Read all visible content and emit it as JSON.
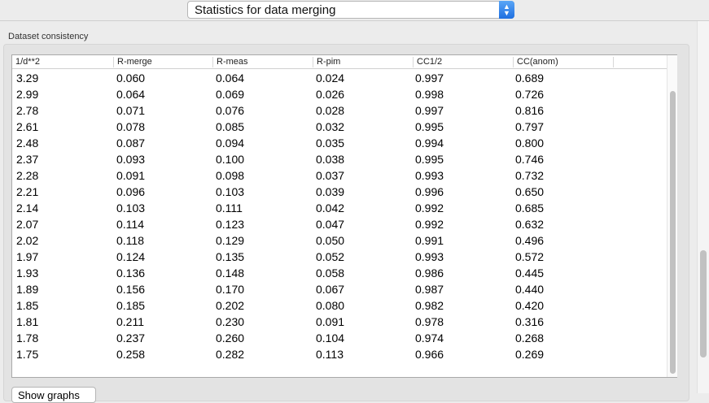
{
  "selector": {
    "value": "Statistics for data merging"
  },
  "group": {
    "label": "Dataset consistency"
  },
  "table": {
    "columns": [
      "1/d**2",
      "R-merge",
      "R-meas",
      "R-pim",
      "CC1/2",
      "CC(anom)"
    ],
    "rows": [
      [
        "3.29",
        "0.060",
        "0.064",
        "0.024",
        "0.997",
        "0.689"
      ],
      [
        "2.99",
        "0.064",
        "0.069",
        "0.026",
        "0.998",
        "0.726"
      ],
      [
        "2.78",
        "0.071",
        "0.076",
        "0.028",
        "0.997",
        "0.816"
      ],
      [
        "2.61",
        "0.078",
        "0.085",
        "0.032",
        "0.995",
        "0.797"
      ],
      [
        "2.48",
        "0.087",
        "0.094",
        "0.035",
        "0.994",
        "0.800"
      ],
      [
        "2.37",
        "0.093",
        "0.100",
        "0.038",
        "0.995",
        "0.746"
      ],
      [
        "2.28",
        "0.091",
        "0.098",
        "0.037",
        "0.993",
        "0.732"
      ],
      [
        "2.21",
        "0.096",
        "0.103",
        "0.039",
        "0.996",
        "0.650"
      ],
      [
        "2.14",
        "0.103",
        "0.111",
        "0.042",
        "0.992",
        "0.685"
      ],
      [
        "2.07",
        "0.114",
        "0.123",
        "0.047",
        "0.992",
        "0.632"
      ],
      [
        "2.02",
        "0.118",
        "0.129",
        "0.050",
        "0.991",
        "0.496"
      ],
      [
        "1.97",
        "0.124",
        "0.135",
        "0.052",
        "0.993",
        "0.572"
      ],
      [
        "1.93",
        "0.136",
        "0.148",
        "0.058",
        "0.986",
        "0.445"
      ],
      [
        "1.89",
        "0.156",
        "0.170",
        "0.067",
        "0.987",
        "0.440"
      ],
      [
        "1.85",
        "0.185",
        "0.202",
        "0.080",
        "0.982",
        "0.420"
      ],
      [
        "1.81",
        "0.211",
        "0.230",
        "0.091",
        "0.978",
        "0.316"
      ],
      [
        "1.78",
        "0.237",
        "0.260",
        "0.104",
        "0.974",
        "0.268"
      ],
      [
        "1.75",
        "0.258",
        "0.282",
        "0.113",
        "0.966",
        "0.269"
      ]
    ]
  },
  "buttons": {
    "show_graphs": "Show graphs"
  },
  "colors": {
    "accent": "#1f6fe0"
  }
}
